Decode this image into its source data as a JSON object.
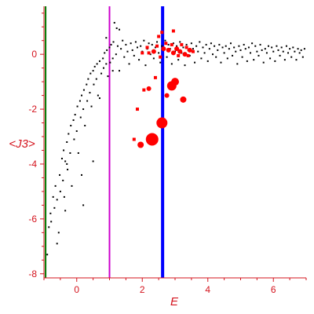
{
  "chart_data": {
    "type": "scatter",
    "title": "",
    "xlabel": "E",
    "ylabel": "<J3>",
    "xlim": [
      -1.0,
      7.0
    ],
    "ylim": [
      -8.15,
      1.75
    ],
    "x_ticks": [
      0,
      2,
      4,
      6
    ],
    "x_tick_labels": [
      "0",
      "2",
      "4",
      "6"
    ],
    "y_ticks": [
      0,
      -2,
      -4,
      -6,
      -8
    ],
    "y_tick_labels": [
      "0",
      "-2",
      "-4",
      "-6",
      "-8"
    ],
    "grid": false,
    "legend": "none",
    "colors": {
      "axes": "#d4141e",
      "background_points": "#000000",
      "highlight_points": "#ff0000",
      "line_green": "#007700",
      "line_magenta": "#cc00cc",
      "line_blue": "#0000ff"
    },
    "vertical_lines": [
      {
        "x": -0.95,
        "color": "#007700"
      },
      {
        "x": 1.0,
        "color": "#cc00cc"
      },
      {
        "x": 2.62,
        "color": "#0000ff"
      }
    ],
    "series": [
      {
        "type": "scatter",
        "color": "#000000",
        "points": [
          [
            -0.9,
            -7.3
          ],
          [
            -0.85,
            -6.3
          ],
          [
            -0.8,
            -5.8
          ],
          [
            -0.78,
            -6.1
          ],
          [
            -0.72,
            -5.2
          ],
          [
            -0.68,
            -5.6
          ],
          [
            -0.65,
            -4.8
          ],
          [
            -0.6,
            -5.3
          ],
          [
            -0.55,
            -6.5
          ],
          [
            -0.52,
            -4.4
          ],
          [
            -0.5,
            -5.0
          ],
          [
            -0.45,
            -3.8
          ],
          [
            -0.42,
            -4.6
          ],
          [
            -0.4,
            -3.5
          ],
          [
            -0.38,
            -5.2
          ],
          [
            -0.35,
            -3.9
          ],
          [
            -0.3,
            -3.2
          ],
          [
            -0.28,
            -4.2
          ],
          [
            -0.25,
            -2.9
          ],
          [
            -0.2,
            -3.6
          ],
          [
            -0.18,
            -2.6
          ],
          [
            -0.15,
            -4.8
          ],
          [
            -0.1,
            -2.4
          ],
          [
            -0.08,
            -3.1
          ],
          [
            -0.05,
            -2.2
          ],
          [
            0.0,
            -2.8
          ],
          [
            0.02,
            -1.9
          ],
          [
            0.05,
            -3.6
          ],
          [
            0.1,
            -1.7
          ],
          [
            0.12,
            -2.3
          ],
          [
            0.15,
            -1.5
          ],
          [
            0.2,
            -2.0
          ],
          [
            0.22,
            -1.3
          ],
          [
            0.25,
            -2.6
          ],
          [
            0.3,
            -1.1
          ],
          [
            0.32,
            -1.7
          ],
          [
            0.35,
            -0.9
          ],
          [
            0.4,
            -1.4
          ],
          [
            0.42,
            -0.7
          ],
          [
            0.45,
            -1.9
          ],
          [
            0.5,
            -0.6
          ],
          [
            0.52,
            -1.1
          ],
          [
            0.55,
            -0.45
          ],
          [
            0.6,
            -0.9
          ],
          [
            0.62,
            -0.35
          ],
          [
            0.65,
            -1.5
          ],
          [
            0.7,
            -0.25
          ],
          [
            0.75,
            -0.7
          ],
          [
            0.8,
            -0.15
          ],
          [
            0.82,
            -0.5
          ],
          [
            0.85,
            0.05
          ],
          [
            0.9,
            -0.35
          ],
          [
            0.92,
            0.15
          ],
          [
            0.95,
            -0.8
          ],
          [
            1.0,
            0.25
          ],
          [
            1.02,
            -0.3
          ],
          [
            1.05,
            0.35
          ],
          [
            1.1,
            -0.15
          ],
          [
            1.12,
            0.45
          ],
          [
            1.15,
            1.15
          ],
          [
            1.2,
            0.0
          ],
          [
            1.25,
            0.3
          ],
          [
            1.3,
            -0.6
          ],
          [
            1.35,
            0.2
          ],
          [
            1.4,
            0.5
          ],
          [
            1.45,
            -0.1
          ],
          [
            1.5,
            0.35
          ],
          [
            1.55,
            0.1
          ],
          [
            1.6,
            -0.35
          ],
          [
            1.65,
            0.4
          ],
          [
            1.7,
            0.15
          ],
          [
            1.75,
            -0.05
          ],
          [
            1.8,
            0.45
          ],
          [
            1.85,
            0.25
          ],
          [
            1.9,
            -0.2
          ],
          [
            1.95,
            0.3
          ],
          [
            2.0,
            0.1
          ],
          [
            2.05,
            0.5
          ],
          [
            2.1,
            -0.4
          ],
          [
            2.15,
            0.2
          ],
          [
            2.2,
            0.4
          ],
          [
            2.25,
            0.0
          ],
          [
            2.3,
            0.35
          ],
          [
            2.35,
            -0.15
          ],
          [
            2.4,
            0.25
          ],
          [
            2.45,
            0.45
          ],
          [
            2.5,
            0.05
          ],
          [
            2.55,
            -0.3
          ],
          [
            2.6,
            0.3
          ],
          [
            2.65,
            0.15
          ],
          [
            2.7,
            0.5
          ],
          [
            2.75,
            -0.1
          ],
          [
            2.8,
            0.35
          ],
          [
            2.85,
            0.2
          ],
          [
            2.9,
            -0.35
          ],
          [
            2.95,
            0.4
          ],
          [
            3.0,
            0.1
          ],
          [
            3.05,
            0.3
          ],
          [
            3.1,
            -0.2
          ],
          [
            3.15,
            0.45
          ],
          [
            3.2,
            0.05
          ],
          [
            3.25,
            0.25
          ],
          [
            3.3,
            -0.4
          ],
          [
            3.35,
            0.35
          ],
          [
            3.4,
            0.15
          ],
          [
            3.45,
            -0.05
          ],
          [
            3.5,
            0.4
          ],
          [
            3.55,
            0.2
          ],
          [
            3.6,
            -0.3
          ],
          [
            3.65,
            0.3
          ],
          [
            3.7,
            0.1
          ],
          [
            3.75,
            0.45
          ],
          [
            3.8,
            -0.15
          ],
          [
            3.85,
            0.25
          ],
          [
            3.9,
            0.05
          ],
          [
            3.95,
            0.35
          ],
          [
            4.0,
            -0.25
          ],
          [
            4.05,
            0.2
          ],
          [
            4.1,
            0.4
          ],
          [
            4.15,
            0.0
          ],
          [
            4.2,
            0.3
          ],
          [
            4.25,
            -0.1
          ],
          [
            4.3,
            0.15
          ],
          [
            4.35,
            0.35
          ],
          [
            4.4,
            -0.3
          ],
          [
            4.45,
            0.25
          ],
          [
            4.5,
            0.05
          ],
          [
            4.55,
            0.3
          ],
          [
            4.6,
            -0.15
          ],
          [
            4.65,
            0.2
          ],
          [
            4.7,
            0.4
          ],
          [
            4.75,
            -0.05
          ],
          [
            4.8,
            0.25
          ],
          [
            4.85,
            0.1
          ],
          [
            4.9,
            -0.35
          ],
          [
            4.95,
            0.3
          ],
          [
            5.0,
            0.15
          ],
          [
            5.05,
            -0.1
          ],
          [
            5.1,
            0.35
          ],
          [
            5.15,
            0.2
          ],
          [
            5.2,
            -0.25
          ],
          [
            5.25,
            0.25
          ],
          [
            5.3,
            0.05
          ],
          [
            5.35,
            0.4
          ],
          [
            5.4,
            -0.2
          ],
          [
            5.45,
            0.3
          ],
          [
            5.5,
            0.1
          ],
          [
            5.55,
            -0.05
          ],
          [
            5.6,
            0.35
          ],
          [
            5.65,
            0.15
          ],
          [
            5.7,
            -0.3
          ],
          [
            5.75,
            0.2
          ],
          [
            5.8,
            0.05
          ],
          [
            5.85,
            0.3
          ],
          [
            5.9,
            -0.15
          ],
          [
            5.95,
            0.25
          ],
          [
            6.0,
            0.1
          ],
          [
            6.05,
            -0.25
          ],
          [
            6.1,
            0.3
          ],
          [
            6.15,
            0.15
          ],
          [
            6.2,
            -0.05
          ],
          [
            6.25,
            0.25
          ],
          [
            6.3,
            0.1
          ],
          [
            6.35,
            -0.2
          ],
          [
            6.4,
            0.3
          ],
          [
            6.45,
            0.05
          ],
          [
            6.5,
            0.2
          ],
          [
            6.55,
            -0.1
          ],
          [
            6.6,
            0.25
          ],
          [
            6.65,
            0.1
          ],
          [
            6.7,
            -0.2
          ],
          [
            6.75,
            0.2
          ],
          [
            6.8,
            0.05
          ],
          [
            6.85,
            0.15
          ],
          [
            6.9,
            -0.1
          ],
          [
            6.95,
            0.2
          ],
          [
            -0.3,
            -4.0
          ],
          [
            0.5,
            -3.9
          ],
          [
            0.2,
            -5.5
          ],
          [
            -0.35,
            -5.7
          ],
          [
            -0.6,
            -6.9
          ],
          [
            0.15,
            -4.4
          ],
          [
            0.7,
            -1.6
          ],
          [
            1.1,
            -0.6
          ],
          [
            0.9,
            0.6
          ],
          [
            1.3,
            0.9
          ],
          [
            1.22,
            0.95
          ]
        ]
      },
      {
        "type": "bubble",
        "color": "#ff0000",
        "points": [
          [
            2.3,
            -3.1,
            8
          ],
          [
            2.6,
            -2.5,
            7
          ],
          [
            1.95,
            -3.3,
            4
          ],
          [
            2.9,
            -1.15,
            6
          ],
          [
            2.75,
            -1.5,
            3
          ],
          [
            3.0,
            -1.0,
            5
          ],
          [
            3.25,
            -1.65,
            4
          ],
          [
            2.2,
            -1.25,
            3
          ],
          [
            1.75,
            -3.1,
            2
          ],
          [
            1.85,
            -2.0,
            2
          ],
          [
            2.05,
            -1.3,
            2
          ],
          [
            2.4,
            -0.85,
            2
          ],
          [
            2.65,
            0.2,
            3
          ],
          [
            2.8,
            0.15,
            3
          ],
          [
            2.95,
            0.05,
            3
          ],
          [
            3.05,
            0.2,
            3
          ],
          [
            3.15,
            0.1,
            3
          ],
          [
            3.3,
            0.0,
            3
          ],
          [
            3.45,
            0.15,
            3
          ],
          [
            2.35,
            0.1,
            3
          ],
          [
            2.15,
            0.25,
            2
          ],
          [
            2.55,
            -0.1,
            2
          ],
          [
            2.72,
            0.4,
            2
          ],
          [
            2.9,
            0.35,
            2
          ],
          [
            3.1,
            -0.05,
            2
          ],
          [
            3.2,
            0.35,
            2
          ],
          [
            3.4,
            -0.05,
            2
          ],
          [
            3.55,
            0.1,
            2
          ],
          [
            2.0,
            0.05,
            2
          ],
          [
            2.45,
            0.3,
            2
          ],
          [
            2.5,
            0.65,
            2
          ],
          [
            2.6,
            0.8,
            2
          ],
          [
            2.95,
            0.85,
            2
          ],
          [
            2.2,
            0.05,
            2
          ],
          [
            3.35,
            0.25,
            2
          ]
        ]
      }
    ]
  }
}
